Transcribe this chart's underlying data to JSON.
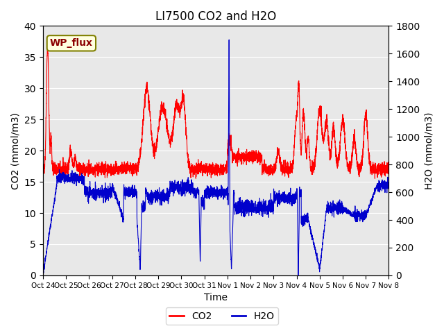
{
  "title": "LI7500 CO2 and H2O",
  "xlabel": "Time",
  "ylabel_left": "CO2 (mmol/m3)",
  "ylabel_right": "H2O (mmol/m3)",
  "watermark_text": "WP_flux",
  "co2_color": "#ff0000",
  "h2o_color": "#0000cc",
  "background_color": "#e8e8e8",
  "ylim_left": [
    0,
    40
  ],
  "ylim_right": [
    0,
    1800
  ],
  "yticks_left": [
    0,
    5,
    10,
    15,
    20,
    25,
    30,
    35,
    40
  ],
  "yticks_right": [
    0,
    200,
    400,
    600,
    800,
    1000,
    1200,
    1400,
    1600,
    1800
  ],
  "x_tick_labels": [
    "Oct 24",
    "Oct 25",
    "Oct 26",
    "Oct 27",
    "Oct 28",
    "Oct 29",
    "Oct 30",
    "Oct 31",
    "Nov 1",
    "Nov 2",
    "Nov 3",
    "Nov 4",
    "Nov 5",
    "Nov 6",
    "Nov 7",
    "Nov 8"
  ],
  "n_points": 3600,
  "seed": 42
}
